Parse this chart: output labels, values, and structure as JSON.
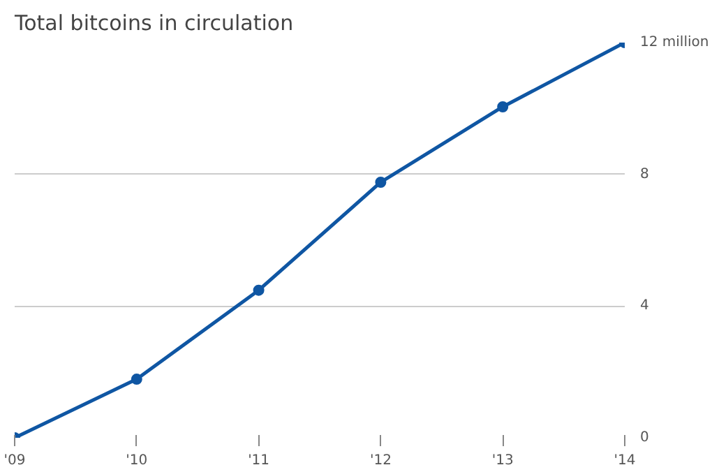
{
  "chart_data": {
    "type": "line",
    "title": "Total bitcoins in circulation",
    "x": [
      2009,
      2010,
      2011,
      2012,
      2013,
      2014
    ],
    "series": [
      {
        "color": "#0f56a3",
        "values": [
          0,
          1.78,
          4.48,
          7.76,
          10.05,
          12
        ]
      }
    ],
    "xlim": [
      2009,
      2014
    ],
    "xticks": [
      {
        "value": 2009,
        "label": "'09"
      },
      {
        "value": 2010,
        "label": "'10"
      },
      {
        "value": 2011,
        "label": "'11"
      },
      {
        "value": 2012,
        "label": "'12"
      },
      {
        "value": 2013,
        "label": "'13"
      },
      {
        "value": 2014,
        "label": "'14"
      }
    ],
    "ylim": [
      0,
      12
    ],
    "yticks": [
      0,
      4,
      8,
      {
        "value": 12,
        "label": "12 million"
      }
    ],
    "grid": "y",
    "marker": "circle",
    "line_style": "solid"
  }
}
